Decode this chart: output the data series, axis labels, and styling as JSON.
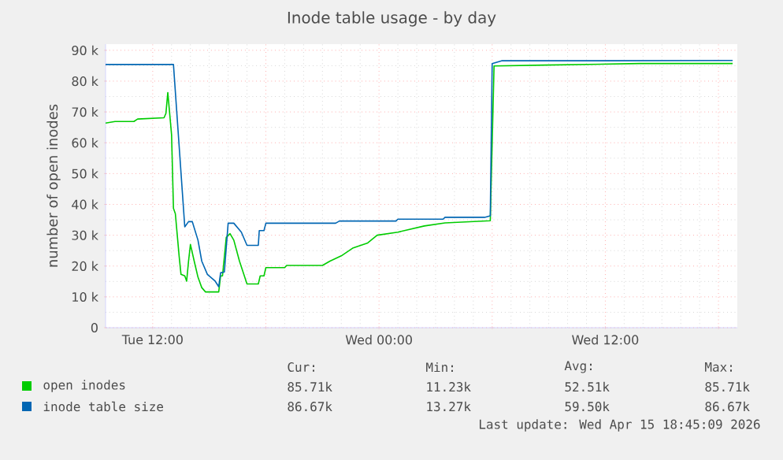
{
  "chart_data": {
    "type": "line",
    "title": "Inode table usage - by day",
    "ylabel": "number of open inodes",
    "x": [
      "2026-04-14T09:30",
      "2026-04-14T10:00",
      "2026-04-14T11:00",
      "2026-04-14T11:12",
      "2026-04-14T12:36",
      "2026-04-14T12:42",
      "2026-04-14T12:48",
      "2026-04-14T13:00",
      "2026-04-14T13:06",
      "2026-04-14T13:12",
      "2026-04-14T13:24",
      "2026-04-14T13:30",
      "2026-04-14T13:42",
      "2026-04-14T13:48",
      "2026-04-14T13:54",
      "2026-04-14T14:00",
      "2026-04-14T14:12",
      "2026-04-14T14:24",
      "2026-04-14T14:36",
      "2026-04-14T14:48",
      "2026-04-14T15:06",
      "2026-04-14T15:30",
      "2026-04-14T15:36",
      "2026-04-14T15:42",
      "2026-04-14T15:54",
      "2026-04-14T16:06",
      "2026-04-14T16:18",
      "2026-04-14T16:36",
      "2026-04-14T17:00",
      "2026-04-14T17:36",
      "2026-04-14T17:42",
      "2026-04-14T17:54",
      "2026-04-14T18:00",
      "2026-04-14T19:00",
      "2026-04-14T19:06",
      "2026-04-14T21:00",
      "2026-04-14T21:24",
      "2026-04-14T22:00",
      "2026-04-14T22:36",
      "2026-04-14T23:24",
      "2026-04-14T23:54",
      "2026-04-15T01:00",
      "2026-04-15T02:24",
      "2026-04-15T03:30",
      "2026-04-15T05:54",
      "2026-04-15T06:06",
      "2026-04-15T08:48",
      "2026-04-15T13:48",
      "2026-04-15T18:45"
    ],
    "series": [
      {
        "name": "open inodes",
        "color": "#00cc00",
        "values": [
          66400,
          66900,
          66900,
          67700,
          68100,
          69500,
          76300,
          62600,
          38700,
          37000,
          23300,
          17300,
          16800,
          15100,
          21600,
          27000,
          21600,
          16400,
          13000,
          11600,
          11600,
          11600,
          16800,
          16800,
          29300,
          30500,
          28400,
          21600,
          14200,
          14200,
          16800,
          16800,
          19500,
          19500,
          20200,
          20200,
          21600,
          23300,
          25800,
          27500,
          30000,
          31000,
          33000,
          34000,
          34700,
          84900,
          85200,
          85700,
          85700
        ]
      },
      {
        "x": [
          "2026-04-14T09:30",
          "2026-04-14T13:06",
          "2026-04-14T13:42",
          "2026-04-14T13:54",
          "2026-04-14T14:06",
          "2026-04-14T14:24",
          "2026-04-14T14:36",
          "2026-04-14T14:54",
          "2026-04-14T15:18",
          "2026-04-14T15:30",
          "2026-04-14T15:36",
          "2026-04-14T15:48",
          "2026-04-14T16:00",
          "2026-04-14T16:18",
          "2026-04-14T16:42",
          "2026-04-14T17:00",
          "2026-04-14T17:36",
          "2026-04-14T17:39",
          "2026-04-14T17:54",
          "2026-04-14T18:00",
          "2026-04-14T21:42",
          "2026-04-14T21:54",
          "2026-04-15T00:54",
          "2026-04-15T01:00",
          "2026-04-15T03:24",
          "2026-04-15T03:30",
          "2026-04-15T05:36",
          "2026-04-15T05:54",
          "2026-04-15T06:00",
          "2026-04-15T06:30",
          "2026-04-15T11:36",
          "2026-04-15T18:45"
        ],
        "name": "inode table size",
        "color": "#0066b3",
        "values": [
          85400,
          85400,
          32700,
          34400,
          34400,
          28400,
          21600,
          17300,
          15200,
          13300,
          17800,
          18100,
          33900,
          33900,
          31000,
          26700,
          26700,
          31500,
          31500,
          33900,
          33900,
          34600,
          34600,
          35200,
          35200,
          35800,
          35800,
          36300,
          85700,
          86600,
          86600,
          86700
        ]
      }
    ],
    "xlim": [
      "2026-04-14T09:30",
      "2026-04-15T19:00"
    ],
    "ylim": [
      0,
      92000
    ],
    "xticks": [
      {
        "value": "2026-04-14T12:00",
        "label": "Tue 12:00"
      },
      {
        "value": "2026-04-14T18:00",
        "label": null
      },
      {
        "value": "2026-04-15T00:00",
        "label": "Wed 00:00"
      },
      {
        "value": "2026-04-15T06:00",
        "label": null
      },
      {
        "value": "2026-04-15T12:00",
        "label": "Wed 12:00"
      },
      {
        "value": "2026-04-15T18:00",
        "label": null
      }
    ],
    "yticks": [
      {
        "value": 0,
        "label": "0"
      },
      {
        "value": 10000,
        "label": "10 k"
      },
      {
        "value": 20000,
        "label": "20 k"
      },
      {
        "value": 30000,
        "label": "30 k"
      },
      {
        "value": 40000,
        "label": "40 k"
      },
      {
        "value": 50000,
        "label": "50 k"
      },
      {
        "value": 60000,
        "label": "60 k"
      },
      {
        "value": 70000,
        "label": "70 k"
      },
      {
        "value": 80000,
        "label": "80 k"
      },
      {
        "value": 90000,
        "label": "90 k"
      }
    ],
    "grid": true,
    "legend": "bottom",
    "marker": "none",
    "line_style": "solid",
    "annotations": [
      "Cur:",
      "Min:",
      "Avg:",
      "Max:",
      "85.71k",
      "11.23k",
      "52.51k",
      "85.71k",
      "86.67k",
      "13.27k",
      "59.50k",
      "86.67k",
      "Last update: Wed Apr 15 18:45:09 2026"
    ]
  }
}
